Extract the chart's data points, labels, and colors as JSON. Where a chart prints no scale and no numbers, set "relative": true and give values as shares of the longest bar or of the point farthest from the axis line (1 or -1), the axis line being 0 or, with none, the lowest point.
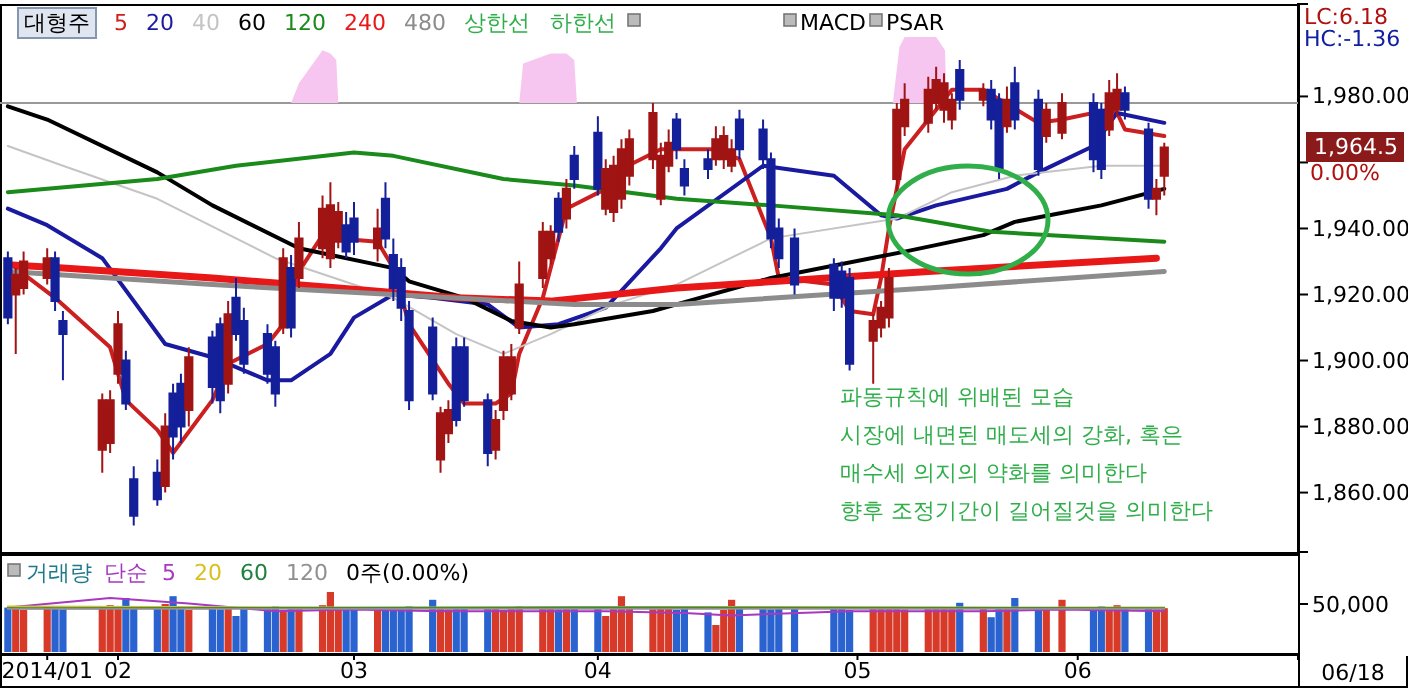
{
  "chart_data": [
    {
      "type": "candlestick",
      "title": "대형주",
      "xlim": [
        "2014-01-21",
        "2014-07-05"
      ],
      "ylim": [
        1842,
        2008
      ],
      "yticks": [
        {
          "value": 1860,
          "label": "1,860.00"
        },
        {
          "value": 1880,
          "label": "1,880.00"
        },
        {
          "value": 1900,
          "label": "1,900.00"
        },
        {
          "value": 1920,
          "label": "1,920.00"
        },
        {
          "value": 1940,
          "label": "1,940.00"
        },
        {
          "value": 1960,
          "label": null
        },
        {
          "value": 1980,
          "label": "1,980.00"
        }
      ],
      "tick_labels": "y",
      "legend": "top left",
      "x": [
        "2014-01-22",
        "2014-01-23",
        "2014-01-24",
        "2014-01-27",
        "2014-01-28",
        "2014-01-29",
        "2014-02-03",
        "2014-02-04",
        "2014-02-05",
        "2014-02-06",
        "2014-02-07",
        "2014-02-10",
        "2014-02-11",
        "2014-02-12",
        "2014-02-13",
        "2014-02-14",
        "2014-02-17",
        "2014-02-18",
        "2014-02-19",
        "2014-02-20",
        "2014-02-21",
        "2014-02-24",
        "2014-02-25",
        "2014-02-26",
        "2014-02-27",
        "2014-02-28",
        "2014-03-03",
        "2014-03-04",
        "2014-03-05",
        "2014-03-06",
        "2014-03-07",
        "2014-03-10",
        "2014-03-11",
        "2014-03-12",
        "2014-03-13",
        "2014-03-14",
        "2014-03-17",
        "2014-03-18",
        "2014-03-19",
        "2014-03-20",
        "2014-03-21",
        "2014-03-24",
        "2014-03-25",
        "2014-03-26",
        "2014-03-27",
        "2014-03-28",
        "2014-03-31",
        "2014-04-01",
        "2014-04-02",
        "2014-04-03",
        "2014-04-04",
        "2014-04-07",
        "2014-04-08",
        "2014-04-09",
        "2014-04-10",
        "2014-04-11",
        "2014-04-14",
        "2014-04-15",
        "2014-04-16",
        "2014-04-17",
        "2014-04-18",
        "2014-04-21",
        "2014-04-22",
        "2014-04-23",
        "2014-04-24",
        "2014-04-25",
        "2014-04-28",
        "2014-04-29",
        "2014-04-30",
        "2014-05-02",
        "2014-05-07",
        "2014-05-08",
        "2014-05-09",
        "2014-05-12",
        "2014-05-13",
        "2014-05-14",
        "2014-05-15",
        "2014-05-16",
        "2014-05-19",
        "2014-05-20",
        "2014-05-21",
        "2014-05-22",
        "2014-05-23",
        "2014-05-26",
        "2014-05-27",
        "2014-05-28",
        "2014-05-29",
        "2014-05-30",
        "2014-06-02",
        "2014-06-03",
        "2014-06-05",
        "2014-06-09",
        "2014-06-10",
        "2014-06-11",
        "2014-06-12",
        "2014-06-13",
        "2014-06-16",
        "2014-06-17",
        "2014-06-18"
      ],
      "ohlc": [
        [
          1931,
          1933,
          1911,
          1913
        ],
        [
          1920,
          1928,
          1902,
          1926
        ],
        [
          1922,
          1933,
          1920,
          1930
        ],
        [
          1925,
          1934,
          1923,
          1931
        ],
        [
          1931,
          1933,
          1915,
          1918
        ],
        [
          1912,
          1915,
          1894,
          1908
        ],
        [
          1873,
          1890,
          1866,
          1888
        ],
        [
          1875,
          1891,
          1872,
          1888
        ],
        [
          1896,
          1915,
          1893,
          1911
        ],
        [
          1900,
          1903,
          1885,
          1887
        ],
        [
          1864,
          1868,
          1850,
          1853
        ],
        [
          1866,
          1870,
          1856,
          1858
        ],
        [
          1862,
          1884,
          1860,
          1880
        ],
        [
          1890,
          1893,
          1870,
          1877
        ],
        [
          1893,
          1896,
          1875,
          1880
        ],
        [
          1885,
          1904,
          1880,
          1901
        ],
        [
          1907,
          1909,
          1887,
          1892
        ],
        [
          1911,
          1913,
          1884,
          1888
        ],
        [
          1893,
          1918,
          1890,
          1914
        ],
        [
          1919,
          1925,
          1906,
          1908
        ],
        [
          1912,
          1916,
          1896,
          1899
        ],
        [
          1908,
          1911,
          1893,
          1896
        ],
        [
          1904,
          1906,
          1886,
          1890
        ],
        [
          1910,
          1934,
          1908,
          1931
        ],
        [
          1928,
          1932,
          1907,
          1910
        ],
        [
          1925,
          1942,
          1922,
          1937
        ],
        [
          1934,
          1950,
          1931,
          1946
        ],
        [
          1931,
          1954,
          1928,
          1947
        ],
        [
          1936,
          1948,
          1934,
          1945
        ],
        [
          1941,
          1945,
          1931,
          1933
        ],
        [
          1943,
          1948,
          1932,
          1936
        ],
        [
          1934,
          1946,
          1930,
          1940
        ],
        [
          1949,
          1954,
          1934,
          1937
        ],
        [
          1932,
          1937,
          1918,
          1922
        ],
        [
          1928,
          1931,
          1912,
          1916
        ],
        [
          1915,
          1918,
          1885,
          1888
        ],
        [
          1910,
          1913,
          1888,
          1890
        ],
        [
          1870,
          1886,
          1866,
          1884
        ],
        [
          1878,
          1888,
          1875,
          1885
        ],
        [
          1904,
          1907,
          1880,
          1882
        ],
        [
          1904,
          1907,
          1886,
          1888
        ],
        [
          1888,
          1890,
          1868,
          1872
        ],
        [
          1873,
          1885,
          1870,
          1882
        ],
        [
          1885,
          1903,
          1882,
          1901
        ],
        [
          1890,
          1905,
          1888,
          1901
        ],
        [
          1910,
          1930,
          1908,
          1923
        ],
        [
          1925,
          1942,
          1922,
          1939
        ],
        [
          1931,
          1941,
          1929,
          1939
        ],
        [
          1949,
          1951,
          1936,
          1939
        ],
        [
          1943,
          1955,
          1940,
          1952
        ],
        [
          1962,
          1965,
          1952,
          1955
        ],
        [
          1969,
          1974,
          1950,
          1952
        ],
        [
          1946,
          1961,
          1944,
          1958
        ],
        [
          1945,
          1962,
          1942,
          1959
        ],
        [
          1949,
          1967,
          1946,
          1964
        ],
        [
          1956,
          1970,
          1953,
          1967
        ],
        [
          1961,
          1978,
          1958,
          1975
        ],
        [
          1949,
          1966,
          1947,
          1962
        ],
        [
          1959,
          1970,
          1957,
          1966
        ],
        [
          1973,
          1975,
          1961,
          1964
        ],
        [
          1958,
          1961,
          1950,
          1953
        ],
        [
          1961,
          1964,
          1955,
          1958
        ],
        [
          1961,
          1971,
          1959,
          1967
        ],
        [
          1961,
          1971,
          1958,
          1968
        ],
        [
          1959,
          1967,
          1957,
          1964
        ],
        [
          1973,
          1976,
          1961,
          1964
        ],
        [
          1970,
          1973,
          1958,
          1961
        ],
        [
          1961,
          1963,
          1934,
          1937
        ],
        [
          1940,
          1943,
          1928,
          1931
        ],
        [
          1937,
          1940,
          1920,
          1923
        ],
        [
          1929,
          1931,
          1915,
          1919
        ],
        [
          1927,
          1930,
          1916,
          1919
        ],
        [
          1925,
          1928,
          1897,
          1899
        ],
        [
          1906,
          1914,
          1893,
          1912
        ],
        [
          1910,
          1918,
          1907,
          1916
        ],
        [
          1913,
          1928,
          1910,
          1925
        ],
        [
          1955,
          1978,
          1950,
          1976
        ],
        [
          1971,
          1984,
          1968,
          1979
        ],
        [
          1972,
          1986,
          1969,
          1982
        ],
        [
          1978,
          1989,
          1976,
          1985
        ],
        [
          1976,
          1987,
          1972,
          1984
        ],
        [
          1973,
          1981,
          1970,
          1979
        ],
        [
          1988,
          1991,
          1976,
          1979
        ],
        [
          1979,
          1984,
          1977,
          1982
        ],
        [
          1982,
          1985,
          1970,
          1973
        ],
        [
          1979,
          1981,
          1955,
          1958
        ],
        [
          1971,
          1983,
          1969,
          1979
        ],
        [
          1984,
          1989,
          1970,
          1973
        ],
        [
          1979,
          1982,
          1956,
          1958
        ],
        [
          1968,
          1978,
          1966,
          1976
        ],
        [
          1969,
          1981,
          1967,
          1978
        ],
        [
          1978,
          1981,
          1957,
          1961
        ],
        [
          1976,
          1978,
          1955,
          1958
        ],
        [
          1970,
          1985,
          1968,
          1981
        ],
        [
          1976,
          1987,
          1974,
          1982
        ],
        [
          1981,
          1983,
          1973,
          1976
        ],
        [
          1970,
          1972,
          1946,
          1949
        ],
        [
          1949,
          1955,
          1944,
          1952
        ],
        [
          1956,
          1966,
          1950,
          1964.5
        ]
      ],
      "colors": [
        "#14209a",
        "#a01414",
        "#a01414",
        "#a01414",
        "#14209a",
        "#14209a",
        "#a01414",
        "#a01414",
        "#a01414",
        "#14209a",
        "#14209a",
        "#14209a",
        "#a01414",
        "#14209a",
        "#14209a",
        "#a01414",
        "#14209a",
        "#14209a",
        "#a01414",
        "#14209a",
        "#14209a",
        "#14209a",
        "#14209a",
        "#a01414",
        "#14209a",
        "#a01414",
        "#a01414",
        "#a01414",
        "#a01414",
        "#14209a",
        "#14209a",
        "#a01414",
        "#14209a",
        "#14209a",
        "#14209a",
        "#14209a",
        "#14209a",
        "#a01414",
        "#a01414",
        "#14209a",
        "#14209a",
        "#14209a",
        "#a01414",
        "#a01414",
        "#a01414",
        "#a01414",
        "#a01414",
        "#a01414",
        "#14209a",
        "#a01414",
        "#14209a",
        "#14209a",
        "#a01414",
        "#a01414",
        "#a01414",
        "#a01414",
        "#a01414",
        "#a01414",
        "#a01414",
        "#14209a",
        "#14209a",
        "#14209a",
        "#a01414",
        "#a01414",
        "#a01414",
        "#14209a",
        "#14209a",
        "#14209a",
        "#14209a",
        "#14209a",
        "#14209a",
        "#14209a",
        "#14209a",
        "#a01414",
        "#a01414",
        "#a01414",
        "#a01414",
        "#a01414",
        "#a01414",
        "#a01414",
        "#a01414",
        "#a01414",
        "#14209a",
        "#a01414",
        "#14209a",
        "#14209a",
        "#a01414",
        "#14209a",
        "#14209a",
        "#a01414",
        "#a01414",
        "#14209a",
        "#14209a",
        "#a01414",
        "#a01414",
        "#14209a",
        "#14209a",
        "#a01414",
        "#a01414"
      ],
      "ref_lines": [
        {
          "axis": "y",
          "value": 1978,
          "color": "#999999"
        }
      ],
      "series": [
        {
          "type": "area",
          "color": "#f6c6f0",
          "x": [
            "2014-02-27",
            "2014-02-28",
            "2014-03-03",
            "2014-03-04",
            "2014-03-04T18:00",
            "2014-03-05",
            "2014-03-15",
            "2014-03-28",
            "2014-03-28T12:00",
            "2014-04-01",
            "2014-04-03",
            "2014-04-04",
            "2014-04-04T08:00",
            "2014-04-20",
            "2014-05-14T12:00",
            "2014-05-15T08:00",
            "2014-05-16",
            "2014-05-20",
            "2014-05-21T03:00",
            "2014-05-21T08:00"
          ],
          "values": [
            1978,
            1984,
            1994,
            1993,
            1991,
            1978,
            null,
            1978,
            1990,
            1993,
            1993,
            1991,
            1978,
            null,
            1978,
            1995,
            1998,
            1998,
            1994,
            1978
          ]
        },
        {
          "type": "line",
          "name": "5",
          "color": "#cc2020",
          "x": [
            "2014-01-23",
            "2014-01-28",
            "2014-02-04",
            "2014-02-06",
            "2014-02-10",
            "2014-02-12",
            "2014-02-17",
            "2014-02-19",
            "2014-02-24",
            "2014-02-26",
            "2014-02-28",
            "2014-03-03",
            "2014-03-05",
            "2014-03-10",
            "2014-03-12",
            "2014-03-14",
            "2014-03-19",
            "2014-03-21",
            "2014-03-25",
            "2014-03-27",
            "2014-03-28",
            "2014-03-31",
            "2014-04-03",
            "2014-04-08",
            "2014-04-10",
            "2014-04-15",
            "2014-04-17",
            "2014-04-22",
            "2014-04-25",
            "2014-04-29",
            "2014-04-30",
            "2014-05-07",
            "2014-05-09",
            "2014-05-12",
            "2014-05-13",
            "2014-05-14",
            "2014-05-16",
            "2014-05-20",
            "2014-05-22",
            "2014-05-26",
            "2014-06-02",
            "2014-06-05",
            "2014-06-11",
            "2014-06-12",
            "2014-06-13",
            "2014-06-18"
          ],
          "values": [
            1928,
            1919,
            1904,
            1888,
            1879,
            1872,
            1888,
            1899,
            1905,
            1911,
            1927,
            1938,
            1937,
            1936,
            1928,
            1911,
            1893,
            1887,
            1887,
            1890,
            1902,
            1919,
            1946,
            1952,
            1958,
            1964,
            1964,
            1964,
            1961,
            1937,
            1925,
            1923,
            1915,
            1914,
            1925,
            1940,
            1964,
            1976,
            1982,
            1982,
            1972,
            1973,
            1976,
            1975,
            1970,
            1968
          ]
        },
        {
          "type": "line",
          "name": "20",
          "color": "#1a1aa0",
          "x": [
            "2014-01-22",
            "2014-01-27",
            "2014-02-03",
            "2014-02-11",
            "2014-02-17",
            "2014-02-24",
            "2014-02-27",
            "2014-03-04",
            "2014-03-07",
            "2014-03-12",
            "2014-03-17",
            "2014-03-24",
            "2014-03-28",
            "2014-04-02",
            "2014-04-08",
            "2014-04-15",
            "2014-04-17",
            "2014-04-28",
            "2014-05-07",
            "2014-05-13",
            "2014-05-15",
            "2014-05-20",
            "2014-05-29",
            "2014-06-02",
            "2014-06-09",
            "2014-06-12",
            "2014-06-18"
          ],
          "values": [
            1946,
            1941,
            1931,
            1905,
            1901,
            1894,
            1894,
            1902,
            1913,
            1920,
            1919,
            1917,
            1910,
            1911,
            1916,
            1934,
            1940,
            1959,
            1956,
            1944,
            1943,
            1947,
            1952,
            1957,
            1965,
            1975,
            1972
          ]
        },
        {
          "type": "line",
          "name": "40",
          "color": "#c4c4c4",
          "x": [
            "2014-01-22",
            "2014-01-29",
            "2014-02-10",
            "2014-02-25",
            "2014-03-12",
            "2014-03-20",
            "2014-03-26",
            "2014-04-01",
            "2014-04-09",
            "2014-04-17",
            "2014-04-29",
            "2014-05-15",
            "2014-05-22",
            "2014-05-30",
            "2014-06-10",
            "2014-06-18"
          ],
          "values": [
            1965,
            1959,
            1949,
            1931,
            1919,
            1908,
            1902,
            1908,
            1917,
            1923,
            1937,
            1943,
            1951,
            1956,
            1959,
            1959
          ]
        },
        {
          "type": "line",
          "name": "60",
          "color": "#000000",
          "x": [
            "2014-01-22",
            "2014-01-27",
            "2014-02-10",
            "2014-02-17",
            "2014-02-28",
            "2014-03-12",
            "2014-03-14",
            "2014-03-21",
            "2014-03-27",
            "2014-04-01",
            "2014-04-04",
            "2014-04-14",
            "2014-04-17",
            "2014-04-29",
            "2014-05-16",
            "2014-05-26",
            "2014-05-30",
            "2014-06-10",
            "2014-06-18"
          ],
          "values": [
            1977,
            1973,
            1957,
            1947,
            1934,
            1928,
            1924,
            1919,
            1912,
            1910,
            1911,
            1915,
            1917,
            1925,
            1933,
            1938,
            1942,
            1947,
            1952
          ]
        },
        {
          "type": "line",
          "name": "120",
          "color": "#1a8a1a",
          "x": [
            "2014-01-22",
            "2014-02-10",
            "2014-02-20",
            "2014-03-07",
            "2014-03-12",
            "2014-03-26",
            "2014-04-04",
            "2014-04-17",
            "2014-04-29",
            "2014-05-15",
            "2014-05-27",
            "2014-06-18"
          ],
          "values": [
            1951,
            1955,
            1959,
            1963,
            1962,
            1955,
            1953,
            1949,
            1947,
            1944,
            1939,
            1936
          ]
        },
        {
          "type": "line",
          "name": "240",
          "color": "#e81818",
          "x": [
            "2014-01-22",
            "2014-01-29",
            "2014-02-17",
            "2014-03-05",
            "2014-03-20",
            "2014-04-01",
            "2014-04-17",
            "2014-05-19",
            "2014-06-17"
          ],
          "values": [
            1929,
            1928,
            1925,
            1922,
            1919,
            1918,
            1922,
            1927,
            1931
          ]
        },
        {
          "type": "line",
          "name": "480",
          "color": "#8c8c8c",
          "x": [
            "2014-01-22",
            "2014-02-17",
            "2014-03-12",
            "2014-04-04",
            "2014-04-17",
            "2014-05-19",
            "2014-06-18"
          ],
          "values": [
            1927,
            1923,
            1920,
            1917,
            1917,
            1922,
            1927
          ]
        }
      ],
      "annotations": [
        "상한선",
        "하한선",
        "MACD",
        "PSAR",
        "LC:6.18",
        "HC:-1.36",
        "1,964.5",
        "0.00%",
        "파동규칙에 위배된 모습",
        "시장에 내면된 매도세의 강화, 혹은",
        "매수세 의지의 약화를 의미한다",
        "향후 조정기간이 길어질것을 의미한다"
      ]
    },
    {
      "type": "bar",
      "title": "거래량",
      "legend_title": "단순",
      "relative": true,
      "legend": "top left",
      "tick_labels": "x",
      "xlim": [
        "2014-01-21",
        "2014-07-05"
      ],
      "xticks": [
        {
          "value": "2014-01-27",
          "label": "2014/01"
        },
        {
          "value": "2014-02-05",
          "label": "02"
        },
        {
          "value": "2014-03-07",
          "label": "03"
        },
        {
          "value": "2014-04-07",
          "label": "04"
        },
        {
          "value": "2014-05-10",
          "label": "05"
        },
        {
          "value": "2014-06-07",
          "label": "06"
        }
      ],
      "x": [
        "2014-01-22",
        "2014-01-23",
        "2014-01-24",
        "2014-01-27",
        "2014-01-28",
        "2014-01-29",
        "2014-02-03",
        "2014-02-04",
        "2014-02-05",
        "2014-02-06",
        "2014-02-07",
        "2014-02-10",
        "2014-02-11",
        "2014-02-12",
        "2014-02-13",
        "2014-02-14",
        "2014-02-17",
        "2014-02-18",
        "2014-02-19",
        "2014-02-20",
        "2014-02-21",
        "2014-02-24",
        "2014-02-25",
        "2014-02-26",
        "2014-02-27",
        "2014-02-28",
        "2014-03-03",
        "2014-03-04",
        "2014-03-05",
        "2014-03-06",
        "2014-03-07",
        "2014-03-10",
        "2014-03-11",
        "2014-03-12",
        "2014-03-13",
        "2014-03-14",
        "2014-03-17",
        "2014-03-18",
        "2014-03-19",
        "2014-03-20",
        "2014-03-21",
        "2014-03-24",
        "2014-03-25",
        "2014-03-26",
        "2014-03-27",
        "2014-03-28",
        "2014-03-31",
        "2014-04-01",
        "2014-04-02",
        "2014-04-03",
        "2014-04-04",
        "2014-04-07",
        "2014-04-08",
        "2014-04-09",
        "2014-04-10",
        "2014-04-11",
        "2014-04-14",
        "2014-04-15",
        "2014-04-16",
        "2014-04-17",
        "2014-04-18",
        "2014-04-21",
        "2014-04-22",
        "2014-04-23",
        "2014-04-24",
        "2014-04-25",
        "2014-04-28",
        "2014-04-29",
        "2014-04-30",
        "2014-05-02",
        "2014-05-07",
        "2014-05-08",
        "2014-05-09",
        "2014-05-12",
        "2014-05-13",
        "2014-05-14",
        "2014-05-15",
        "2014-05-16",
        "2014-05-19",
        "2014-05-20",
        "2014-05-21",
        "2014-05-22",
        "2014-05-23",
        "2014-05-26",
        "2014-05-27",
        "2014-05-28",
        "2014-05-29",
        "2014-05-30",
        "2014-06-02",
        "2014-06-03",
        "2014-06-05",
        "2014-06-09",
        "2014-06-10",
        "2014-06-11",
        "2014-06-12",
        "2014-06-13",
        "2014-06-16",
        "2014-06-17",
        "2014-06-18"
      ],
      "series": [
        {
          "values": [
            0.74,
            0.72,
            0.7,
            0.76,
            0.73,
            0.71,
            0.75,
            0.78,
            0.72,
            0.9,
            0.74,
            0.72,
            0.8,
            0.93,
            0.72,
            0.7,
            0.74,
            0.71,
            0.73,
            0.6,
            0.74,
            0.72,
            0.76,
            0.7,
            0.73,
            0.75,
            0.78,
            1.0,
            0.74,
            0.72,
            0.71,
            0.73,
            0.75,
            0.72,
            0.74,
            0.76,
            0.87,
            0.73,
            0.71,
            0.74,
            0.72,
            0.75,
            0.73,
            0.7,
            0.74,
            0.76,
            0.72,
            0.74,
            0.71,
            0.73,
            0.75,
            0.72,
            0.6,
            0.74,
            0.93,
            0.73,
            0.71,
            0.74,
            0.72,
            0.7,
            0.73,
            0.66,
            0.45,
            0.7,
            0.87,
            0.74,
            0.72,
            0.71,
            0.74,
            0.73,
            0.75,
            0.72,
            0.7,
            0.74,
            0.73,
            0.72,
            0.74,
            0.71,
            0.73,
            0.75,
            0.72,
            0.74,
            0.82,
            0.73,
            0.58,
            0.72,
            0.75,
            0.9,
            0.74,
            0.72,
            0.87,
            0.74,
            0.76,
            0.73,
            0.78,
            0.72,
            0.74,
            0.71,
            0.73
          ],
          "colors": [
            "#2a62d0",
            "#d83a2a",
            "#d83a2a",
            "#d83a2a",
            "#2a62d0",
            "#2a62d0",
            "#d83a2a",
            "#d83a2a",
            "#d83a2a",
            "#2a62d0",
            "#2a62d0",
            "#2a62d0",
            "#d83a2a",
            "#2a62d0",
            "#2a62d0",
            "#d83a2a",
            "#2a62d0",
            "#2a62d0",
            "#d83a2a",
            "#2a62d0",
            "#2a62d0",
            "#2a62d0",
            "#2a62d0",
            "#d83a2a",
            "#2a62d0",
            "#d83a2a",
            "#d83a2a",
            "#d83a2a",
            "#d83a2a",
            "#2a62d0",
            "#2a62d0",
            "#d83a2a",
            "#2a62d0",
            "#2a62d0",
            "#2a62d0",
            "#2a62d0",
            "#2a62d0",
            "#d83a2a",
            "#d83a2a",
            "#2a62d0",
            "#2a62d0",
            "#2a62d0",
            "#d83a2a",
            "#d83a2a",
            "#d83a2a",
            "#d83a2a",
            "#d83a2a",
            "#d83a2a",
            "#2a62d0",
            "#d83a2a",
            "#2a62d0",
            "#2a62d0",
            "#d83a2a",
            "#d83a2a",
            "#d83a2a",
            "#d83a2a",
            "#d83a2a",
            "#d83a2a",
            "#d83a2a",
            "#2a62d0",
            "#2a62d0",
            "#2a62d0",
            "#d83a2a",
            "#d83a2a",
            "#d83a2a",
            "#2a62d0",
            "#2a62d0",
            "#2a62d0",
            "#2a62d0",
            "#2a62d0",
            "#2a62d0",
            "#2a62d0",
            "#2a62d0",
            "#d83a2a",
            "#d83a2a",
            "#d83a2a",
            "#d83a2a",
            "#d83a2a",
            "#d83a2a",
            "#d83a2a",
            "#d83a2a",
            "#d83a2a",
            "#2a62d0",
            "#d83a2a",
            "#2a62d0",
            "#2a62d0",
            "#d83a2a",
            "#2a62d0",
            "#2a62d0",
            "#d83a2a",
            "#d83a2a",
            "#2a62d0",
            "#2a62d0",
            "#d83a2a",
            "#d83a2a",
            "#2a62d0",
            "#2a62d0",
            "#d83a2a",
            "#d83a2a"
          ]
        },
        {
          "type": "line",
          "name": "5",
          "color": "#a838c0",
          "x": [
            "2014-01-22",
            "2014-02-04",
            "2014-02-14",
            "2014-02-25",
            "2014-03-07",
            "2014-03-18",
            "2014-04-08",
            "2014-04-18",
            "2014-04-24",
            "2014-05-09",
            "2014-05-26",
            "2014-06-05",
            "2014-06-18"
          ],
          "values": [
            0.74,
            0.9,
            0.81,
            0.68,
            0.71,
            0.68,
            0.68,
            0.65,
            0.61,
            0.68,
            0.68,
            0.71,
            0.68
          ]
        },
        {
          "type": "line",
          "name": "20",
          "color": "#d8c020",
          "x": [
            "2014-01-22",
            "2014-03-07",
            "2014-04-18",
            "2014-06-18"
          ],
          "values": [
            0.76,
            0.74,
            0.75,
            0.74
          ]
        },
        {
          "type": "line",
          "name": "60",
          "color": "#208040",
          "x": [
            "2014-01-22",
            "2014-04-04",
            "2014-06-18"
          ],
          "values": [
            0.73,
            0.74,
            0.73
          ]
        },
        {
          "type": "line",
          "name": "120",
          "color": "#909090",
          "x": [
            "2014-01-22",
            "2014-04-04",
            "2014-06-18"
          ],
          "values": [
            0.72,
            0.72,
            0.72
          ]
        }
      ],
      "annotations": [
        "0주(0.00%)",
        "50,000",
        "06/18"
      ]
    }
  ]
}
